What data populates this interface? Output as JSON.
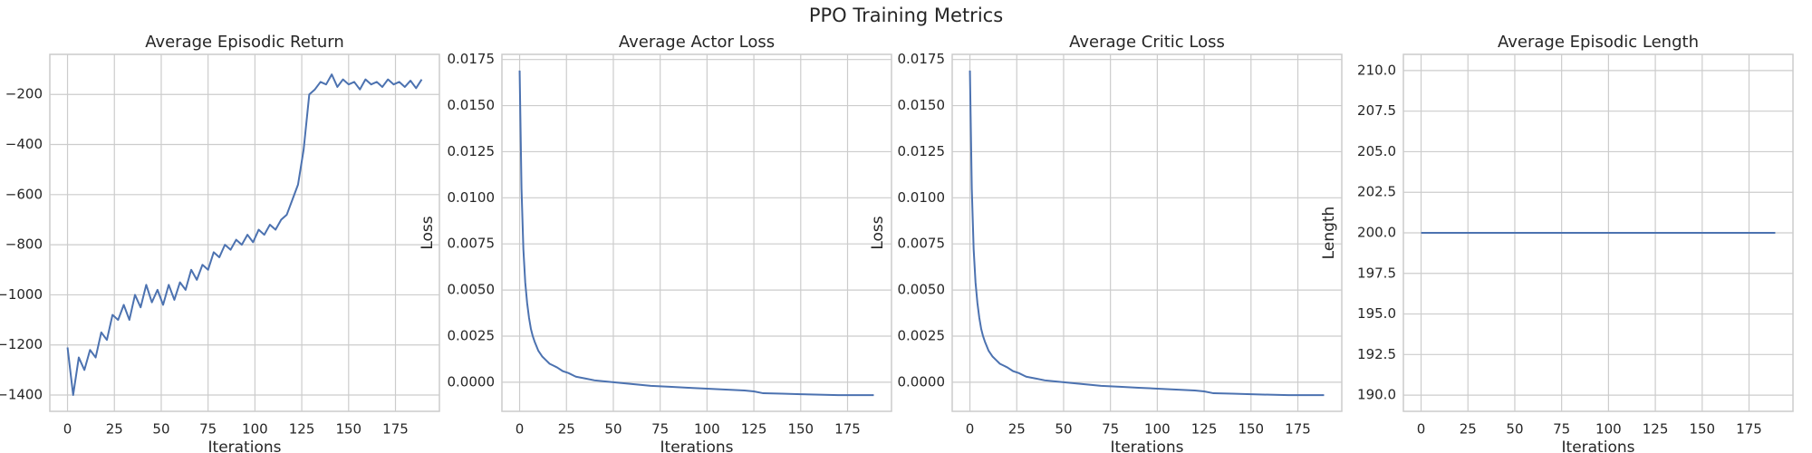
{
  "title": "PPO Training Metrics",
  "chart_data": [
    {
      "type": "line",
      "title": "Average Episodic Return",
      "xlabel": "Iterations",
      "x": [
        0,
        3,
        6,
        9,
        12,
        15,
        18,
        21,
        24,
        27,
        30,
        33,
        36,
        39,
        42,
        45,
        48,
        51,
        54,
        57,
        60,
        63,
        66,
        69,
        72,
        75,
        78,
        81,
        84,
        87,
        90,
        93,
        96,
        99,
        102,
        105,
        108,
        111,
        114,
        117,
        120,
        123,
        126,
        129,
        132,
        135,
        138,
        141,
        144,
        147,
        150,
        153,
        156,
        159,
        162,
        165,
        168,
        171,
        174,
        177,
        180,
        183,
        186,
        189
      ],
      "series": [
        {
          "name": "Average Episodic Return",
          "color": "#4c72b0",
          "values": [
            -1210,
            -1400,
            -1250,
            -1300,
            -1220,
            -1250,
            -1150,
            -1180,
            -1080,
            -1100,
            -1040,
            -1100,
            -1000,
            -1050,
            -960,
            -1030,
            -980,
            -1040,
            -960,
            -1020,
            -950,
            -980,
            -900,
            -940,
            -880,
            -900,
            -830,
            -850,
            -800,
            -820,
            -780,
            -800,
            -760,
            -790,
            -740,
            -760,
            -720,
            -740,
            -700,
            -680,
            -620,
            -560,
            -420,
            -200,
            -180,
            -150,
            -160,
            -120,
            -170,
            -140,
            -160,
            -150,
            -180,
            -140,
            -160,
            -150,
            -170,
            -140,
            -160,
            -150,
            -170,
            -145,
            -175,
            -140
          ]
        }
      ],
      "xlim": [
        -9.45,
        198.45
      ],
      "xticks": [
        0,
        25,
        50,
        75,
        100,
        125,
        150,
        175
      ],
      "ylim": [
        -1465,
        -40
      ],
      "yticks": [
        {
          "value": -1400,
          "label": "−1400"
        },
        {
          "value": -1200,
          "label": "−1200"
        },
        {
          "value": -1000,
          "label": "−1000"
        },
        {
          "value": -800,
          "label": "−800"
        },
        {
          "value": -600,
          "label": "−600"
        },
        {
          "value": -400,
          "label": "−400"
        },
        {
          "value": -200,
          "label": "−200"
        }
      ],
      "grid": true
    },
    {
      "type": "line",
      "title": "Average Actor Loss",
      "xlabel": "Iterations",
      "ylabel": "Loss",
      "x": [
        0,
        1,
        2,
        3,
        4,
        5,
        6,
        7,
        8,
        10,
        12,
        14,
        16,
        18,
        20,
        23,
        26,
        30,
        35,
        40,
        45,
        50,
        55,
        60,
        70,
        80,
        90,
        100,
        110,
        120,
        125,
        130,
        140,
        150,
        160,
        170,
        180,
        189
      ],
      "series": [
        {
          "name": "Average Actor Loss",
          "color": "#4c72b0",
          "values": [
            0.0169,
            0.0105,
            0.0072,
            0.0054,
            0.0043,
            0.0035,
            0.0029,
            0.0025,
            0.0022,
            0.0017,
            0.0014,
            0.0012,
            0.001,
            0.0009,
            0.0008,
            0.0006,
            0.0005,
            0.0003,
            0.0002,
            0.0001,
            5e-05,
            0,
            -5e-05,
            -0.0001,
            -0.0002,
            -0.00025,
            -0.0003,
            -0.00035,
            -0.0004,
            -0.00045,
            -0.0005,
            -0.0006,
            -0.00062,
            -0.00065,
            -0.00068,
            -0.0007,
            -0.0007,
            -0.0007
          ]
        }
      ],
      "xlim": [
        -9.45,
        198.45
      ],
      "xticks": [
        0,
        25,
        50,
        75,
        100,
        125,
        150,
        175
      ],
      "ylim": [
        -0.00158,
        0.01778
      ],
      "yticks": [
        {
          "value": 0,
          "label": "0.0000"
        },
        {
          "value": 0.0025,
          "label": "0.0025"
        },
        {
          "value": 0.005,
          "label": "0.0050"
        },
        {
          "value": 0.0075,
          "label": "0.0075"
        },
        {
          "value": 0.01,
          "label": "0.0100"
        },
        {
          "value": 0.0125,
          "label": "0.0125"
        },
        {
          "value": 0.015,
          "label": "0.0150"
        },
        {
          "value": 0.0175,
          "label": "0.0175"
        }
      ],
      "grid": true
    },
    {
      "type": "line",
      "title": "Average Critic Loss",
      "xlabel": "Iterations",
      "ylabel": "Loss",
      "x": [
        0,
        1,
        2,
        3,
        4,
        5,
        6,
        7,
        8,
        10,
        12,
        14,
        16,
        18,
        20,
        23,
        26,
        30,
        35,
        40,
        45,
        50,
        55,
        60,
        70,
        80,
        90,
        100,
        110,
        120,
        125,
        130,
        140,
        150,
        160,
        170,
        180,
        189
      ],
      "series": [
        {
          "name": "Average Critic Loss",
          "color": "#4c72b0",
          "values": [
            0.0169,
            0.0105,
            0.0072,
            0.0054,
            0.0043,
            0.0035,
            0.0029,
            0.0025,
            0.0022,
            0.0017,
            0.0014,
            0.0012,
            0.001,
            0.0009,
            0.0008,
            0.0006,
            0.0005,
            0.0003,
            0.0002,
            0.0001,
            5e-05,
            0,
            -5e-05,
            -0.0001,
            -0.0002,
            -0.00025,
            -0.0003,
            -0.00035,
            -0.0004,
            -0.00045,
            -0.0005,
            -0.0006,
            -0.00062,
            -0.00065,
            -0.00068,
            -0.0007,
            -0.0007,
            -0.0007
          ]
        }
      ],
      "xlim": [
        -9.45,
        198.45
      ],
      "xticks": [
        0,
        25,
        50,
        75,
        100,
        125,
        150,
        175
      ],
      "ylim": [
        -0.00158,
        0.01778
      ],
      "yticks": [
        {
          "value": 0,
          "label": "0.0000"
        },
        {
          "value": 0.0025,
          "label": "0.0025"
        },
        {
          "value": 0.005,
          "label": "0.0050"
        },
        {
          "value": 0.0075,
          "label": "0.0075"
        },
        {
          "value": 0.01,
          "label": "0.0100"
        },
        {
          "value": 0.0125,
          "label": "0.0125"
        },
        {
          "value": 0.015,
          "label": "0.0150"
        },
        {
          "value": 0.0175,
          "label": "0.0175"
        }
      ],
      "grid": true
    },
    {
      "type": "line",
      "title": "Average Episodic Length",
      "xlabel": "Iterations",
      "ylabel": "Length",
      "x": [
        0,
        189
      ],
      "series": [
        {
          "name": "Average Episodic Length",
          "color": "#4c72b0",
          "values": [
            200,
            200
          ]
        }
      ],
      "xlim": [
        -9.45,
        198.45
      ],
      "xticks": [
        0,
        25,
        50,
        75,
        100,
        125,
        150,
        175
      ],
      "ylim": [
        189,
        211
      ],
      "yticks": [
        {
          "value": 190,
          "label": "190.0"
        },
        {
          "value": 192.5,
          "label": "192.5"
        },
        {
          "value": 195,
          "label": "195.0"
        },
        {
          "value": 197.5,
          "label": "197.5"
        },
        {
          "value": 200,
          "label": "200.0"
        },
        {
          "value": 202.5,
          "label": "202.5"
        },
        {
          "value": 205,
          "label": "205.0"
        },
        {
          "value": 207.5,
          "label": "207.5"
        },
        {
          "value": 210,
          "label": "210.0"
        }
      ],
      "grid": true
    }
  ]
}
